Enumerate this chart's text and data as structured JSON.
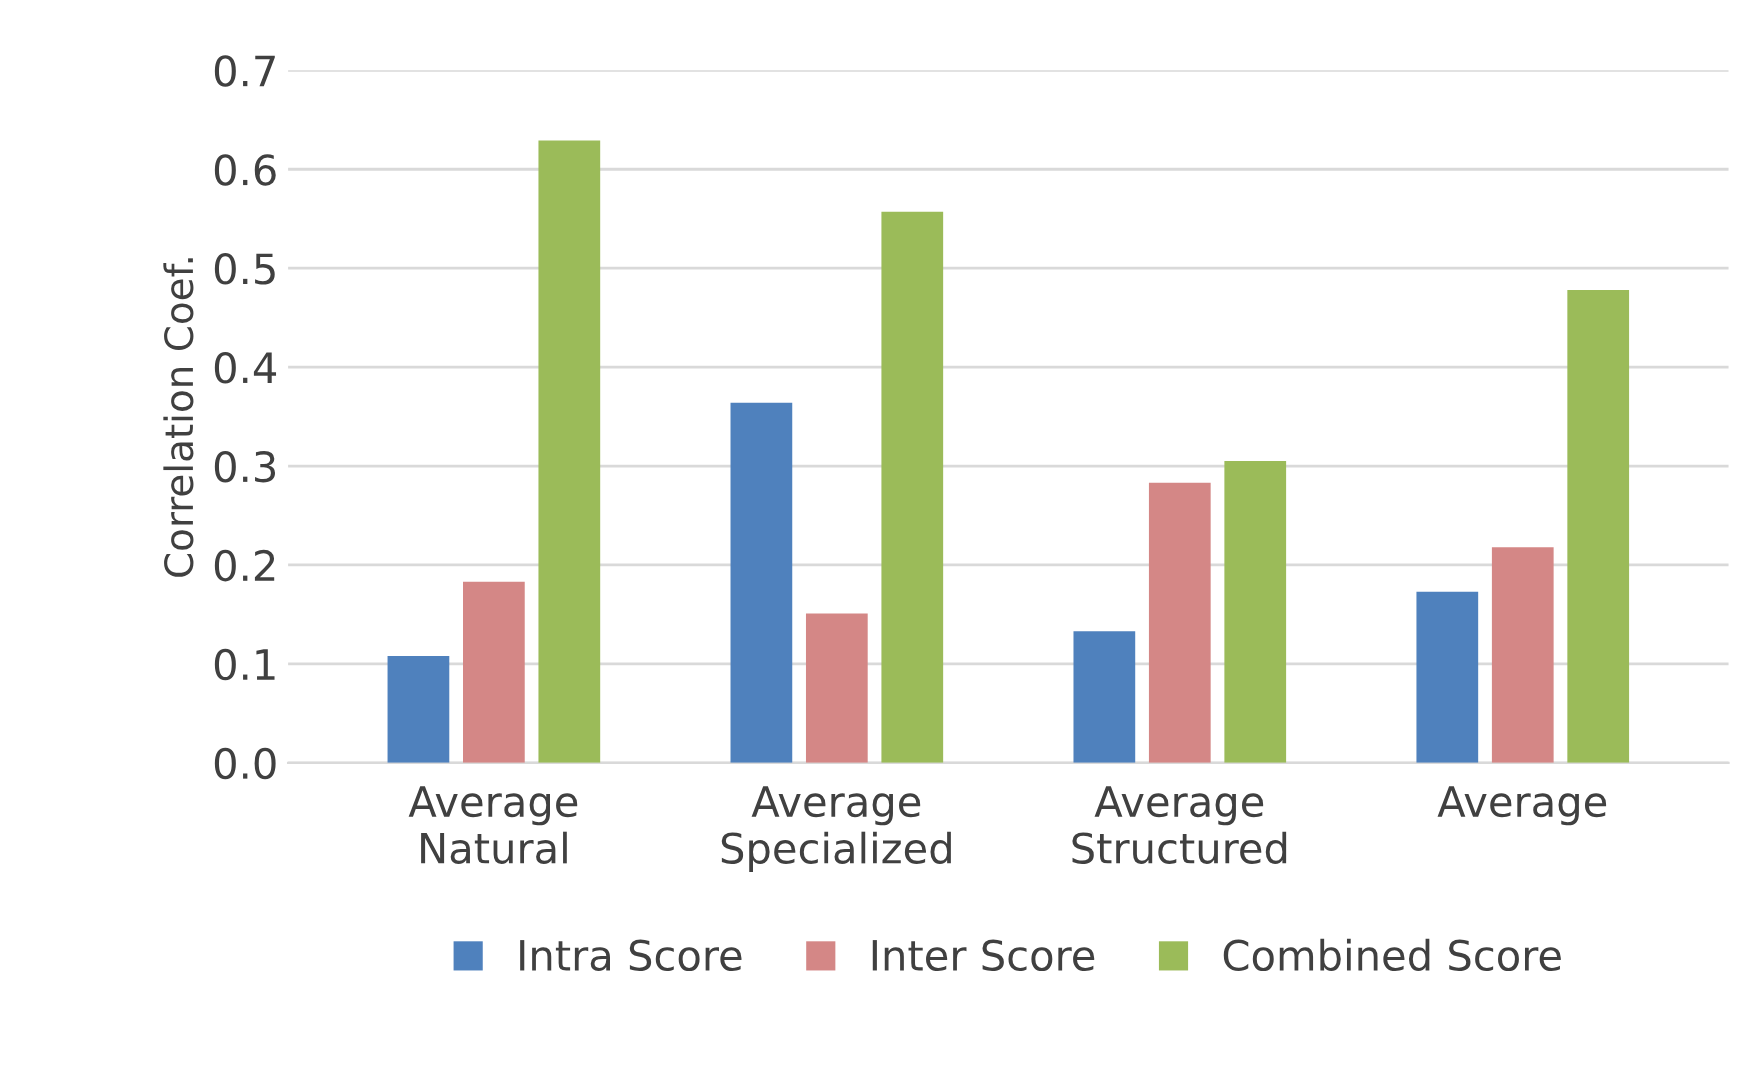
{
  "chart_data": {
    "type": "bar",
    "ylabel": "Correlation Coef.",
    "categories": [
      "Average\nNatural",
      "Average\nSpecialized",
      "Average\nStructured",
      "Average"
    ],
    "series": [
      {
        "name": "Intra Score",
        "color": "#4f81bd",
        "values": [
          0.108,
          0.364,
          0.133,
          0.173
        ]
      },
      {
        "name": "Inter Score",
        "color": "#d48786",
        "values": [
          0.183,
          0.151,
          0.283,
          0.218
        ]
      },
      {
        "name": "Combined Score",
        "color": "#9bbb59",
        "values": [
          0.629,
          0.557,
          0.305,
          0.478
        ]
      }
    ],
    "ylim": [
      0,
      0.7
    ],
    "yticks": [
      {
        "value": 0,
        "label": "0.0"
      },
      0.1,
      0.2,
      0.3,
      0.4,
      0.5,
      0.6,
      0.7
    ],
    "grid": "y",
    "legend": "bottom"
  }
}
